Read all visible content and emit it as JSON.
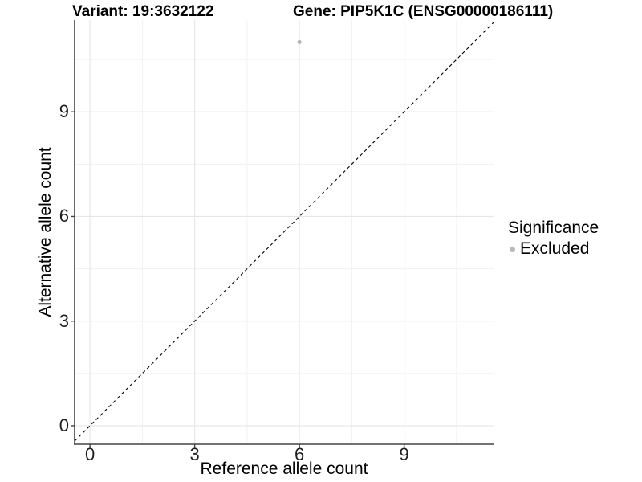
{
  "header": {
    "variant_title": "Variant: 19:3632122",
    "gene_title": "Gene: PIP5K1C (ENSG00000186111)"
  },
  "chart_data": {
    "type": "scatter",
    "title": "Variant: 19:3632122    Gene: PIP5K1C (ENSG00000186111)",
    "xlabel": "Reference allele count",
    "ylabel": "Alternative allele count",
    "xlim": [
      -0.44,
      11.56
    ],
    "ylim": [
      -0.53,
      11.63
    ],
    "x_ticks": [
      0,
      3,
      6,
      9
    ],
    "y_ticks": [
      0,
      3,
      6,
      9
    ],
    "x_minor_ticks": [
      1.5,
      4.5,
      7.5,
      10.5
    ],
    "y_minor_ticks": [
      1.5,
      4.5,
      7.5,
      10.5
    ],
    "grid": "major+minor",
    "legend_position": "right",
    "series": [
      {
        "name": "Excluded",
        "color": "#b8b8b8",
        "points": [
          {
            "x": 6,
            "y": 11
          }
        ]
      }
    ],
    "reference_line": {
      "slope": 1,
      "intercept": 0,
      "linetype": "dashed",
      "color": "#000000"
    },
    "legend": {
      "title": "Significance",
      "items": [
        {
          "label": "Excluded",
          "color": "#b8b8b8"
        }
      ]
    },
    "colors": {
      "grid_major": "#e6e6e6",
      "grid_minor": "#f1f1f1",
      "axis_line": "#434343",
      "tick_mark": "#434343",
      "tick_label": "#1f1f1f",
      "text": "#000000",
      "background": "#ffffff"
    }
  }
}
